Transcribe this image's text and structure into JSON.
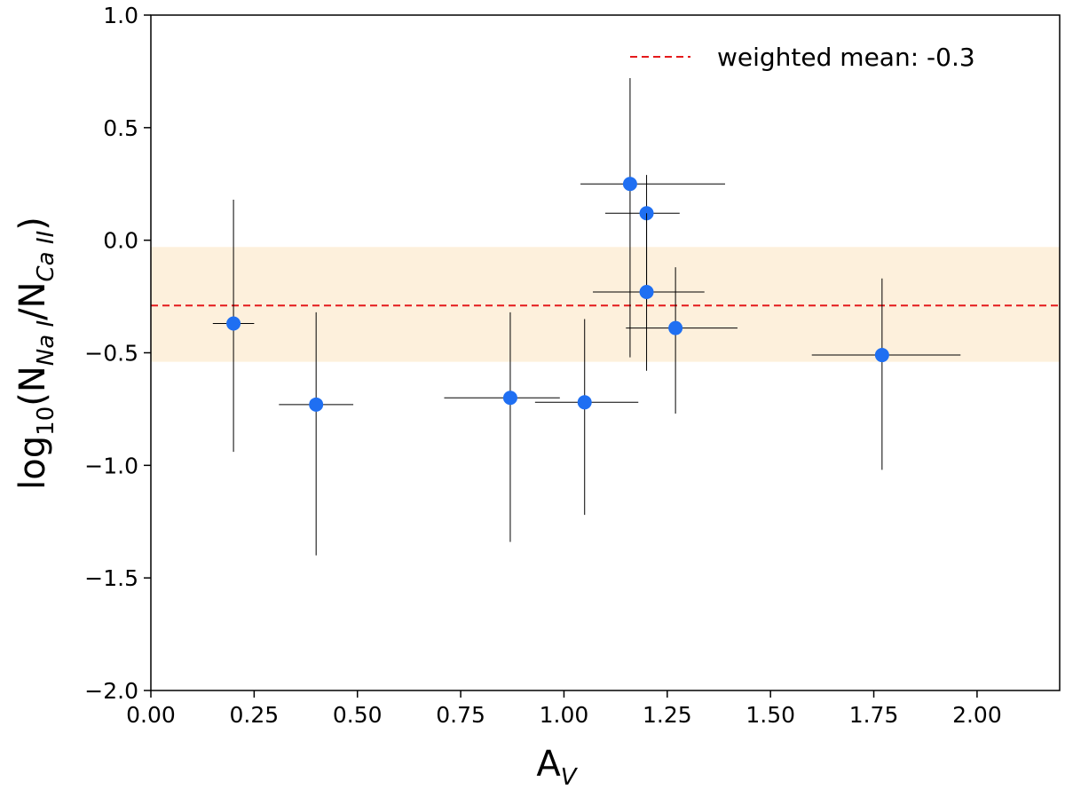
{
  "chart_data": {
    "type": "scatter",
    "title": "",
    "xlabel": {
      "main": "A",
      "sub": "V"
    },
    "ylabel": {
      "prefix": "log",
      "base": "10",
      "open": "(N",
      "sub1": "Na I",
      "mid": "/N",
      "sub2": "Ca II",
      "close": ")"
    },
    "xlim": [
      0.0,
      2.2
    ],
    "ylim": [
      -2.0,
      1.0
    ],
    "xticks": [
      0.0,
      0.25,
      0.5,
      0.75,
      1.0,
      1.25,
      1.5,
      1.75,
      2.0
    ],
    "xtick_labels": [
      "0.00",
      "0.25",
      "0.50",
      "0.75",
      "1.00",
      "1.25",
      "1.50",
      "1.75",
      "2.00"
    ],
    "yticks": [
      1.0,
      0.5,
      0.0,
      -0.5,
      -1.0,
      -1.5,
      -2.0
    ],
    "ytick_labels": [
      "1.0",
      "0.5",
      "0.0",
      "−0.5",
      "−1.0",
      "−1.5",
      "−2.0"
    ],
    "points": [
      {
        "x": 0.2,
        "y": -0.37,
        "xerr": [
          0.05,
          0.05
        ],
        "yerr": [
          0.57,
          0.55
        ]
      },
      {
        "x": 0.4,
        "y": -0.73,
        "xerr": [
          0.09,
          0.09
        ],
        "yerr": [
          0.67,
          0.41
        ]
      },
      {
        "x": 0.87,
        "y": -0.7,
        "xerr": [
          0.16,
          0.12
        ],
        "yerr": [
          0.64,
          0.38
        ]
      },
      {
        "x": 1.05,
        "y": -0.72,
        "xerr": [
          0.12,
          0.13
        ],
        "yerr": [
          0.5,
          0.37
        ]
      },
      {
        "x": 1.16,
        "y": 0.25,
        "xerr": [
          0.12,
          0.23
        ],
        "yerr": [
          0.77,
          0.47
        ]
      },
      {
        "x": 1.2,
        "y": 0.12,
        "xerr": [
          0.1,
          0.08
        ],
        "yerr": [
          0.4,
          0.17
        ]
      },
      {
        "x": 1.2,
        "y": -0.23,
        "xerr": [
          0.13,
          0.14
        ],
        "yerr": [
          0.35,
          0.35
        ]
      },
      {
        "x": 1.27,
        "y": -0.39,
        "xerr": [
          0.12,
          0.15
        ],
        "yerr": [
          0.38,
          0.27
        ]
      },
      {
        "x": 1.77,
        "y": -0.51,
        "xerr": [
          0.17,
          0.19
        ],
        "yerr": [
          0.51,
          0.34
        ]
      }
    ],
    "weighted_mean": {
      "value": -0.29,
      "label": "weighted mean: -0.3",
      "color": "#e41a1c"
    },
    "band": {
      "y_low": -0.54,
      "y_high": -0.03,
      "color": "#fdf0dc"
    },
    "marker_color": "#1f6ff2",
    "errorbar_color": "#000000",
    "legend_position": "top-right",
    "grid": false
  }
}
